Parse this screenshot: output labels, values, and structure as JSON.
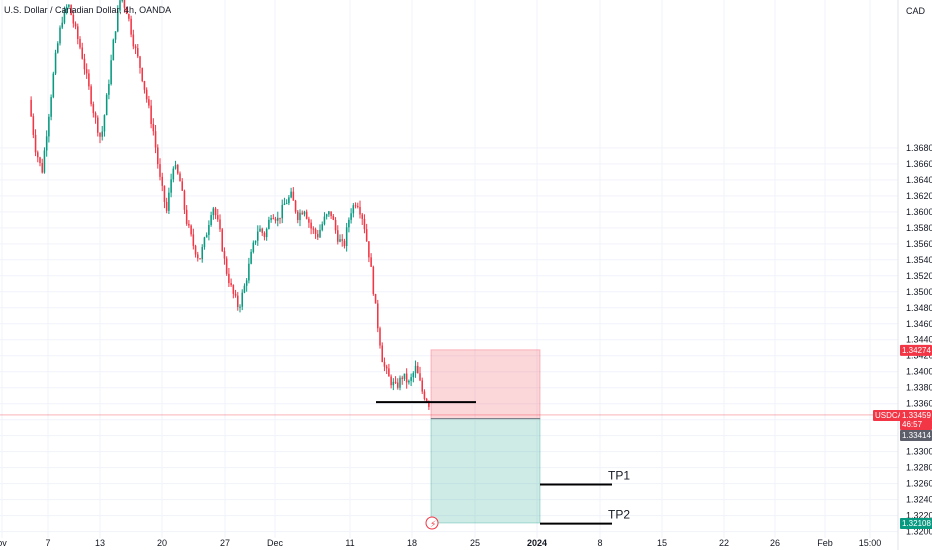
{
  "header": {
    "title": "U.S. Dollar / Canadian Dollar, 4h, OANDA"
  },
  "currency_label": "CAD",
  "chart_data": {
    "type": "candlestick",
    "symbol": "USDCAD",
    "ylim": [
      1.3192,
      1.3865
    ],
    "y_ticks": [
      "1.36800",
      "1.36600",
      "1.36400",
      "1.36200",
      "1.36000",
      "1.35800",
      "1.35600",
      "1.35400",
      "1.35200",
      "1.35000",
      "1.34800",
      "1.34600",
      "1.34400",
      "1.34200",
      "1.34000",
      "1.33800",
      "1.33600",
      "1.33400",
      "1.33200",
      "1.33000",
      "1.32800",
      "1.32600",
      "1.32400",
      "1.32200",
      "1.32000"
    ],
    "x_ticks": [
      "ov",
      "7",
      "13",
      "20",
      "27",
      "Dec",
      "11",
      "18",
      "25",
      "2024",
      "8",
      "15",
      "22",
      "26",
      "Feb",
      "15:00"
    ],
    "series_close_path": [
      [
        0,
        1.374
      ],
      [
        1,
        1.368
      ],
      [
        2,
        1.365
      ],
      [
        3,
        1.372
      ],
      [
        4,
        1.379
      ],
      [
        5,
        1.384
      ],
      [
        6,
        1.386
      ],
      [
        7,
        1.383
      ],
      [
        8,
        1.38
      ],
      [
        9,
        1.376
      ],
      [
        10,
        1.372
      ],
      [
        11,
        1.369
      ],
      [
        12,
        1.375
      ],
      [
        13,
        1.382
      ],
      [
        14,
        1.387
      ],
      [
        15,
        1.385
      ],
      [
        16,
        1.381
      ],
      [
        17,
        1.378
      ],
      [
        18,
        1.374
      ],
      [
        19,
        1.37
      ],
      [
        20,
        1.364
      ],
      [
        21,
        1.36
      ],
      [
        22,
        1.366
      ],
      [
        23,
        1.364
      ],
      [
        24,
        1.359
      ],
      [
        25,
        1.356
      ],
      [
        26,
        1.354
      ],
      [
        27,
        1.357
      ],
      [
        28,
        1.361
      ],
      [
        29,
        1.358
      ],
      [
        30,
        1.353
      ],
      [
        31,
        1.35
      ],
      [
        32,
        1.348
      ],
      [
        33,
        1.351
      ],
      [
        34,
        1.355
      ],
      [
        35,
        1.358
      ],
      [
        36,
        1.357
      ],
      [
        37,
        1.36
      ],
      [
        38,
        1.359
      ],
      [
        39,
        1.361
      ],
      [
        40,
        1.362
      ],
      [
        41,
        1.3595
      ],
      [
        42,
        1.3605
      ],
      [
        43,
        1.358
      ],
      [
        44,
        1.357
      ],
      [
        45,
        1.359
      ],
      [
        46,
        1.36
      ],
      [
        47,
        1.357
      ],
      [
        48,
        1.3555
      ],
      [
        49,
        1.36
      ],
      [
        50,
        1.3615
      ],
      [
        51,
        1.359
      ],
      [
        52,
        1.354
      ],
      [
        53,
        1.347
      ],
      [
        54,
        1.341
      ],
      [
        55,
        1.339
      ],
      [
        56,
        1.338
      ],
      [
        57,
        1.3395
      ],
      [
        58,
        1.3385
      ],
      [
        59,
        1.3405
      ],
      [
        60,
        1.3375
      ],
      [
        61,
        1.336
      ]
    ],
    "price_tags": [
      {
        "label": "1.34274",
        "value": 1.34274,
        "color": "#f23645"
      },
      {
        "label": "USDCAD",
        "value": 1.33459,
        "color": "#f23645"
      },
      {
        "label": "1.33459",
        "value": 1.33459,
        "color": "#f23645"
      },
      {
        "label": "46:57",
        "value": 1.33459,
        "color": "#f23645"
      },
      {
        "label": "1.33414",
        "value": 1.33414,
        "color": "#5d606b"
      },
      {
        "label": "1.32108",
        "value": 1.32108,
        "color": "#089981"
      }
    ],
    "position": {
      "entry": 1.33414,
      "stop": 1.34274,
      "target": 1.32108,
      "loss_color": "#f23645",
      "profit_color": "#089981"
    },
    "levels": [
      {
        "label": "",
        "value": 1.3362
      },
      {
        "label": "TP1",
        "value": 1.3259
      },
      {
        "label": "TP2",
        "value": 1.321
      }
    ],
    "current_price": 1.33459,
    "colors": {
      "up": "#089981",
      "down": "#f23645",
      "grid": "#f0f3fa"
    }
  }
}
